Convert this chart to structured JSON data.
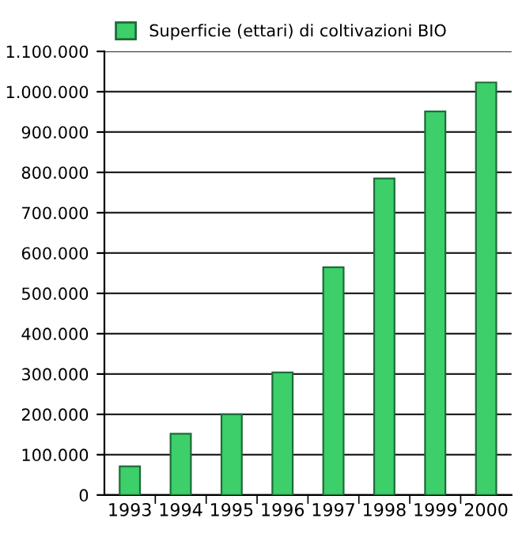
{
  "chart_data": {
    "type": "bar",
    "categories": [
      "1993",
      "1994",
      "1995",
      "1996",
      "1997",
      "1998",
      "1999",
      "2000"
    ],
    "series": [
      {
        "name": "Superficie (ettari) di coltivazioni BIO",
        "color": "#3ccf6a",
        "values": [
          71000,
          152000,
          200000,
          304000,
          565000,
          785000,
          951000,
          1023000
        ]
      }
    ],
    "ylim": [
      0,
      1100000
    ],
    "yticks": [
      {
        "value": 0,
        "label": "0"
      },
      {
        "value": 100000,
        "label": "100.000"
      },
      {
        "value": 200000,
        "label": "200.000"
      },
      {
        "value": 300000,
        "label": "300.000"
      },
      {
        "value": 400000,
        "label": "400.000"
      },
      {
        "value": 500000,
        "label": "500.000"
      },
      {
        "value": 600000,
        "label": "600.000"
      },
      {
        "value": 700000,
        "label": "700.000"
      },
      {
        "value": 800000,
        "label": "800.000"
      },
      {
        "value": 900000,
        "label": "900.000"
      },
      {
        "value": 1000000,
        "label": "1.000.000"
      },
      {
        "value": 1100000,
        "label": "1.100.000"
      }
    ],
    "grid": "y",
    "legend": "top left"
  }
}
